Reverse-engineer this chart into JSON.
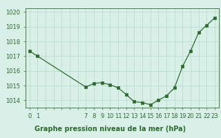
{
  "x": [
    0,
    1,
    7,
    8,
    9,
    10,
    11,
    12,
    13,
    14,
    15,
    16,
    17,
    18,
    19,
    20,
    21,
    22,
    23
  ],
  "y": [
    1017.35,
    1017.0,
    1014.9,
    1015.15,
    1015.2,
    1015.05,
    1014.85,
    1014.4,
    1013.9,
    1013.85,
    1013.7,
    1014.0,
    1014.3,
    1014.85,
    1016.3,
    1017.35,
    1018.6,
    1019.1,
    1019.6
  ],
  "line_color": "#2d6a2d",
  "marker_color": "#2d6a2d",
  "bg_color": "#d8f0e8",
  "grid_color": "#b8d8c8",
  "title": "Graphe pression niveau de la mer (hPa)",
  "ylim": [
    1013.5,
    1020.25
  ],
  "yticks": [
    1014,
    1015,
    1016,
    1017,
    1018,
    1019,
    1020
  ],
  "xlim": [
    -0.5,
    23.5
  ],
  "title_fontsize": 7.0,
  "tick_fontsize": 6.0,
  "tick_color": "#2d6a2d",
  "grid_xticks": [
    0,
    1,
    2,
    3,
    4,
    5,
    6,
    7,
    8,
    9,
    10,
    11,
    12,
    13,
    14,
    15,
    16,
    17,
    18,
    19,
    20,
    21,
    22,
    23
  ],
  "label_xticks": [
    0,
    1,
    7,
    8,
    9,
    10,
    11,
    12,
    13,
    14,
    15,
    16,
    17,
    18,
    19,
    20,
    21,
    22,
    23
  ]
}
